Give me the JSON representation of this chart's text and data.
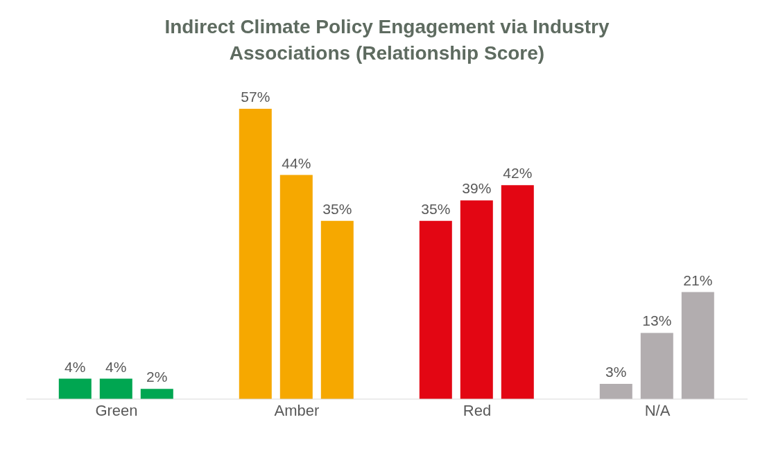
{
  "chart_data": {
    "type": "bar",
    "title": "Indirect Climate Policy Engagement via Industry Associations (Relationship Score)",
    "categories": [
      "Green",
      "Amber",
      "Red",
      "N/A"
    ],
    "series": [
      {
        "colors": [
          "#00a651",
          "#f6a800",
          "#e30613",
          "#b2adaf"
        ],
        "values": [
          4,
          57,
          35,
          3
        ],
        "value_labels": [
          "4%",
          "57%",
          "35%",
          "3%"
        ]
      },
      {
        "colors": [
          "#00a651",
          "#f6a800",
          "#e30613",
          "#b2adaf"
        ],
        "values": [
          4,
          44,
          39,
          13
        ],
        "value_labels": [
          "4%",
          "44%",
          "39%",
          "13%"
        ]
      },
      {
        "colors": [
          "#00a651",
          "#f6a800",
          "#e30613",
          "#b2adaf"
        ],
        "values": [
          2,
          35,
          42,
          21
        ],
        "value_labels": [
          "2%",
          "35%",
          "42%",
          "21%"
        ]
      }
    ],
    "grid": false,
    "legend": false
  }
}
